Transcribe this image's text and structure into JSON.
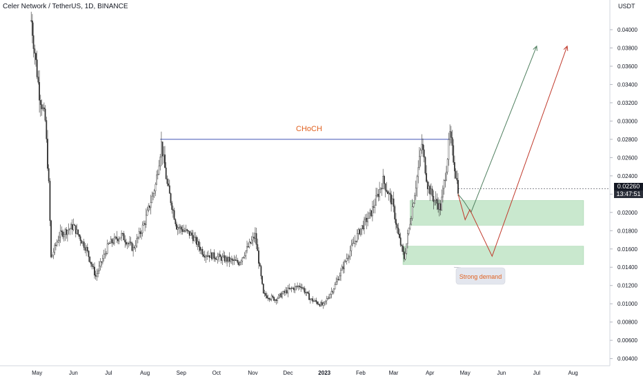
{
  "header": {
    "title": "Celer Network / TetherUS, 1D, BINANCE"
  },
  "axis": {
    "unit": "USDT"
  },
  "price_tag": {
    "price": "0.02260",
    "countdown": "13:47:51"
  },
  "annotations": {
    "choch": "CHoCH",
    "demand": "Strong demand"
  },
  "colors": {
    "candle": "#333333",
    "choch_line": "#3f51b5",
    "choch_text": "#e0601f",
    "zone": "#b7e0bd",
    "path_green": "#4f7f5f",
    "path_red": "#c0392b",
    "demand_text": "#e0601f",
    "demand_box": "#e3e6ee"
  },
  "chart_data": {
    "type": "candlestick",
    "title": "Celer Network / TetherUS, 1D, BINANCE",
    "x_tick_labels": [
      "May",
      "Jun",
      "Jul",
      "Aug",
      "Sep",
      "Oct",
      "Nov",
      "Dec",
      "2023",
      "Feb",
      "Mar",
      "Apr",
      "May",
      "Jun",
      "Jul",
      "Aug"
    ],
    "y_tick_labels": [
      "0.04000",
      "0.03800",
      "0.03600",
      "0.03400",
      "0.03200",
      "0.03000",
      "0.02800",
      "0.02600",
      "0.02400",
      "0.02200",
      "0.02000",
      "0.01800",
      "0.01600",
      "0.01400",
      "0.01200",
      "0.01000",
      "0.00800",
      "0.00600",
      "0.00400"
    ],
    "ylim": [
      0.0033,
      0.0415
    ],
    "current_price": 0.0226,
    "price_path": [
      [
        "2022-04-26",
        0.041
      ],
      [
        "2022-05-03",
        0.033
      ],
      [
        "2022-05-08",
        0.03
      ],
      [
        "2022-05-11",
        0.023
      ],
      [
        "2022-05-13",
        0.015
      ],
      [
        "2022-05-20",
        0.0175
      ],
      [
        "2022-06-01",
        0.0185
      ],
      [
        "2022-06-12",
        0.016
      ],
      [
        "2022-06-20",
        0.013
      ],
      [
        "2022-07-01",
        0.0165
      ],
      [
        "2022-07-12",
        0.0175
      ],
      [
        "2022-07-22",
        0.016
      ],
      [
        "2022-08-01",
        0.019
      ],
      [
        "2022-08-10",
        0.023
      ],
      [
        "2022-08-15",
        0.0275
      ],
      [
        "2022-08-20",
        0.023
      ],
      [
        "2022-08-28",
        0.0185
      ],
      [
        "2022-09-10",
        0.0175
      ],
      [
        "2022-09-20",
        0.0155
      ],
      [
        "2022-10-05",
        0.015
      ],
      [
        "2022-10-20",
        0.0145
      ],
      [
        "2022-11-03",
        0.0175
      ],
      [
        "2022-11-10",
        0.011
      ],
      [
        "2022-11-20",
        0.0105
      ],
      [
        "2022-12-01",
        0.0115
      ],
      [
        "2022-12-12",
        0.012
      ],
      [
        "2022-12-20",
        0.0105
      ],
      [
        "2022-12-31",
        0.0098
      ],
      [
        "2023-01-10",
        0.012
      ],
      [
        "2023-01-20",
        0.015
      ],
      [
        "2023-01-31",
        0.018
      ],
      [
        "2023-02-10",
        0.02
      ],
      [
        "2023-02-20",
        0.0235
      ],
      [
        "2023-02-28",
        0.021
      ],
      [
        "2023-03-05",
        0.0175
      ],
      [
        "2023-03-10",
        0.015
      ],
      [
        "2023-03-15",
        0.019
      ],
      [
        "2023-03-20",
        0.023
      ],
      [
        "2023-03-25",
        0.0275
      ],
      [
        "2023-03-30",
        0.023
      ],
      [
        "2023-04-04",
        0.0215
      ],
      [
        "2023-04-10",
        0.0205
      ],
      [
        "2023-04-15",
        0.025
      ],
      [
        "2023-04-18",
        0.0285
      ],
      [
        "2023-04-22",
        0.025
      ],
      [
        "2023-04-25",
        0.0226
      ]
    ],
    "choch_level": {
      "price": 0.028,
      "from": "2022-08-14",
      "to": "2023-04-18",
      "label": "CHoCH"
    },
    "zones": [
      {
        "from": "2023-03-15",
        "to": "2023-08-10",
        "low": 0.0186,
        "high": 0.0213
      },
      {
        "from": "2023-03-09",
        "to": "2023-08-10",
        "low": 0.0143,
        "high": 0.0163,
        "label": "Strong demand"
      }
    ],
    "projections": [
      {
        "color": "green",
        "points": [
          [
            "2023-04-25",
            0.022
          ],
          [
            "2023-04-30",
            0.0212
          ],
          [
            "2023-05-06",
            0.02
          ],
          [
            "2023-07-01",
            0.0382
          ]
        ]
      },
      {
        "color": "red",
        "points": [
          [
            "2023-04-25",
            0.022
          ],
          [
            "2023-05-01",
            0.0192
          ],
          [
            "2023-05-05",
            0.0203
          ],
          [
            "2023-05-24",
            0.0152
          ],
          [
            "2023-07-27",
            0.0382
          ]
        ]
      }
    ]
  }
}
